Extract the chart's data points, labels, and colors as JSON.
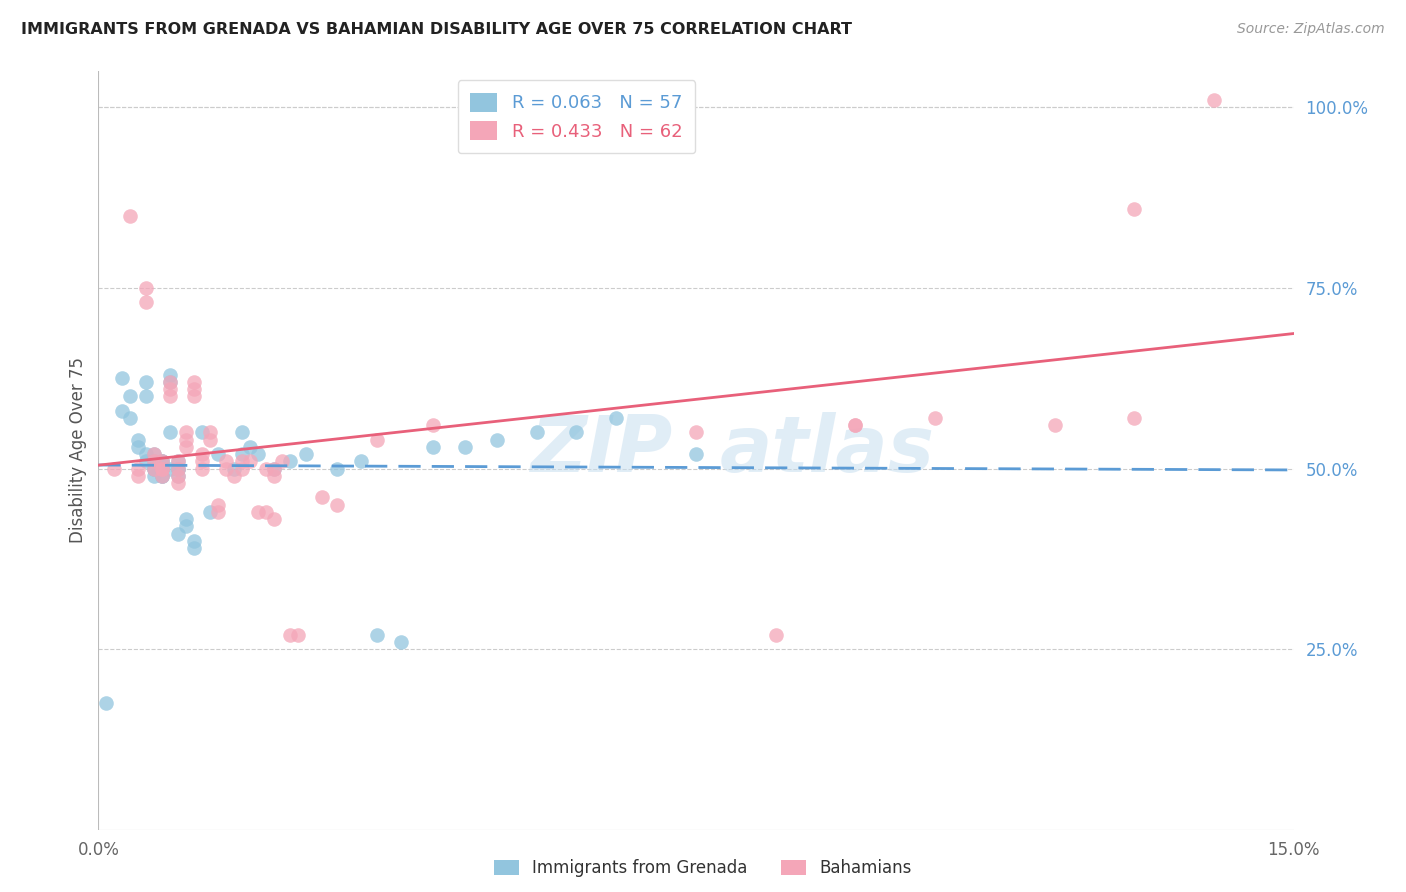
{
  "title": "IMMIGRANTS FROM GRENADA VS BAHAMIAN DISABILITY AGE OVER 75 CORRELATION CHART",
  "source": "Source: ZipAtlas.com",
  "ylabel": "Disability Age Over 75",
  "right_yticks": [
    "100.0%",
    "75.0%",
    "50.0%",
    "25.0%"
  ],
  "right_ytick_vals": [
    1.0,
    0.75,
    0.5,
    0.25
  ],
  "xlim": [
    0.0,
    0.15
  ],
  "ylim": [
    0.0,
    1.05
  ],
  "color_blue": "#92c5de",
  "color_pink": "#f4a6b8",
  "trend_blue": "#5b9bd5",
  "trend_pink": "#e8607a",
  "blue_x": [
    0.001,
    0.003,
    0.003,
    0.004,
    0.004,
    0.005,
    0.005,
    0.006,
    0.006,
    0.006,
    0.006,
    0.007,
    0.007,
    0.007,
    0.007,
    0.007,
    0.008,
    0.008,
    0.008,
    0.008,
    0.008,
    0.008,
    0.009,
    0.009,
    0.009,
    0.009,
    0.01,
    0.01,
    0.01,
    0.01,
    0.01,
    0.011,
    0.011,
    0.012,
    0.012,
    0.013,
    0.014,
    0.015,
    0.017,
    0.018,
    0.018,
    0.019,
    0.02,
    0.022,
    0.024,
    0.026,
    0.03,
    0.033,
    0.035,
    0.038,
    0.042,
    0.046,
    0.05,
    0.055,
    0.06,
    0.065,
    0.075
  ],
  "blue_y": [
    0.175,
    0.625,
    0.58,
    0.6,
    0.57,
    0.54,
    0.53,
    0.62,
    0.6,
    0.52,
    0.51,
    0.52,
    0.51,
    0.5,
    0.5,
    0.49,
    0.51,
    0.51,
    0.5,
    0.5,
    0.49,
    0.49,
    0.63,
    0.62,
    0.55,
    0.5,
    0.51,
    0.5,
    0.5,
    0.49,
    0.41,
    0.43,
    0.42,
    0.4,
    0.39,
    0.55,
    0.44,
    0.52,
    0.5,
    0.52,
    0.55,
    0.53,
    0.52,
    0.5,
    0.51,
    0.52,
    0.5,
    0.51,
    0.27,
    0.26,
    0.53,
    0.53,
    0.54,
    0.55,
    0.55,
    0.57,
    0.52
  ],
  "pink_x": [
    0.002,
    0.004,
    0.005,
    0.005,
    0.006,
    0.006,
    0.007,
    0.007,
    0.007,
    0.008,
    0.008,
    0.008,
    0.008,
    0.009,
    0.009,
    0.009,
    0.01,
    0.01,
    0.01,
    0.01,
    0.011,
    0.011,
    0.011,
    0.012,
    0.012,
    0.012,
    0.013,
    0.013,
    0.013,
    0.014,
    0.014,
    0.015,
    0.015,
    0.016,
    0.016,
    0.017,
    0.018,
    0.018,
    0.019,
    0.02,
    0.021,
    0.022,
    0.022,
    0.023,
    0.024,
    0.025,
    0.021,
    0.022
  ],
  "pink_y": [
    0.5,
    0.85,
    0.5,
    0.49,
    0.75,
    0.73,
    0.52,
    0.51,
    0.5,
    0.51,
    0.5,
    0.5,
    0.49,
    0.62,
    0.61,
    0.6,
    0.51,
    0.5,
    0.49,
    0.48,
    0.55,
    0.54,
    0.53,
    0.62,
    0.61,
    0.6,
    0.52,
    0.51,
    0.5,
    0.55,
    0.54,
    0.45,
    0.44,
    0.51,
    0.5,
    0.49,
    0.51,
    0.5,
    0.51,
    0.44,
    0.5,
    0.5,
    0.49,
    0.51,
    0.27,
    0.27,
    0.44,
    0.43
  ],
  "pink_x2": [
    0.028,
    0.03,
    0.035,
    0.042,
    0.06,
    0.075,
    0.085,
    0.095,
    0.105,
    0.12,
    0.13,
    0.14,
    0.095,
    0.13
  ],
  "pink_y2": [
    0.46,
    0.45,
    0.54,
    0.56,
    0.95,
    0.55,
    0.27,
    0.56,
    0.57,
    0.56,
    0.86,
    1.01,
    0.56,
    0.57
  ]
}
